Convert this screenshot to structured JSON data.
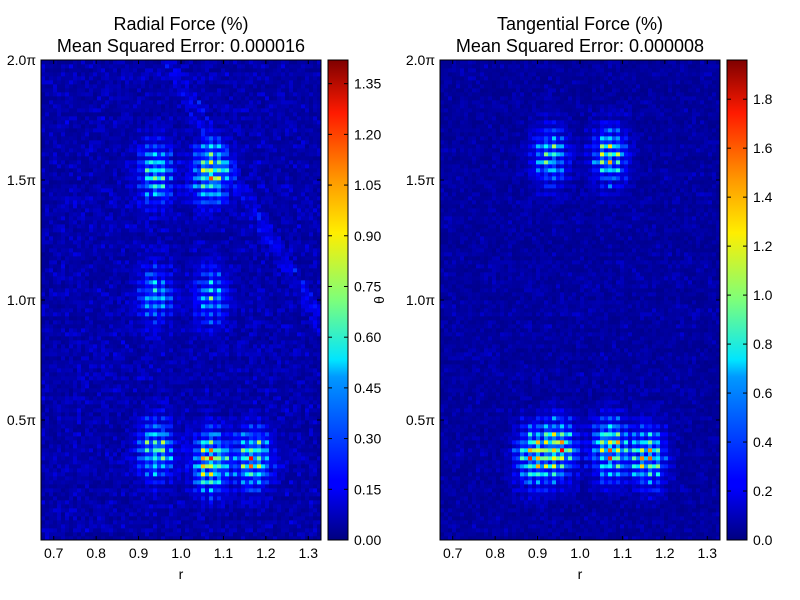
{
  "chart_data": [
    {
      "type": "heatmap",
      "title": "Radial Force (%)",
      "subtitle": "Mean Squared Error: 0.000016",
      "xlabel": "r",
      "ylabel": "θ",
      "xlim": [
        0.67,
        1.33
      ],
      "x_ticks": [
        0.7,
        0.8,
        0.9,
        1.0,
        1.1,
        1.2,
        1.3
      ],
      "x_tick_labels": [
        "0.7",
        "0.8",
        "0.9",
        "1.0",
        "1.1",
        "1.2",
        "1.3"
      ],
      "ylim_pi": [
        0.0,
        2.0
      ],
      "y_ticks_pi": [
        0.5,
        1.0,
        1.5,
        2.0
      ],
      "y_tick_labels": [
        "0.5π",
        "1.0π",
        "1.5π",
        "2.0π"
      ],
      "colormap": "jet",
      "colorbar": {
        "min": 0.0,
        "max": 1.42,
        "ticks": [
          0.0,
          0.15,
          0.3,
          0.45,
          0.6,
          0.75,
          0.9,
          1.05,
          1.2,
          1.35
        ],
        "tick_labels": [
          "0.00",
          "0.15",
          "0.30",
          "0.45",
          "0.60",
          "0.75",
          "0.90",
          "1.05",
          "1.20",
          "1.35"
        ]
      },
      "hotspots": [
        {
          "r": 0.94,
          "theta_pi": 1.53,
          "value": 0.85
        },
        {
          "r": 1.07,
          "theta_pi": 1.53,
          "value": 1.15
        },
        {
          "r": 0.94,
          "theta_pi": 0.38,
          "value": 0.95
        },
        {
          "r": 1.07,
          "theta_pi": 0.33,
          "value": 1.25
        },
        {
          "r": 1.17,
          "theta_pi": 0.34,
          "value": 1.1
        },
        {
          "r": 0.94,
          "theta_pi": 1.02,
          "value": 0.6
        },
        {
          "r": 1.07,
          "theta_pi": 1.02,
          "value": 0.6
        }
      ]
    },
    {
      "type": "heatmap",
      "title": "Tangential Force (%)",
      "subtitle": "Mean Squared Error: 0.000008",
      "xlabel": "r",
      "ylabel": "",
      "xlim": [
        0.67,
        1.33
      ],
      "x_ticks": [
        0.7,
        0.8,
        0.9,
        1.0,
        1.1,
        1.2,
        1.3
      ],
      "x_tick_labels": [
        "0.7",
        "0.8",
        "0.9",
        "1.0",
        "1.1",
        "1.2",
        "1.3"
      ],
      "ylim_pi": [
        0.0,
        2.0
      ],
      "y_ticks_pi": [
        0.5,
        1.0,
        1.5,
        2.0
      ],
      "y_tick_labels": [
        "0.5π",
        "1.0π",
        "1.5π",
        "2.0π"
      ],
      "colormap": "jet",
      "colorbar": {
        "min": 0.0,
        "max": 1.96,
        "ticks": [
          0.0,
          0.2,
          0.4,
          0.6,
          0.8,
          1.0,
          1.2,
          1.4,
          1.6,
          1.8
        ],
        "tick_labels": [
          "0.0",
          "0.2",
          "0.4",
          "0.6",
          "0.8",
          "1.0",
          "1.2",
          "1.4",
          "1.6",
          "1.8"
        ]
      },
      "hotspots": [
        {
          "r": 0.93,
          "theta_pi": 1.6,
          "value": 1.1
        },
        {
          "r": 1.07,
          "theta_pi": 1.6,
          "value": 1.3
        },
        {
          "r": 0.89,
          "theta_pi": 0.35,
          "value": 1.5
        },
        {
          "r": 0.95,
          "theta_pi": 0.38,
          "value": 1.6
        },
        {
          "r": 1.07,
          "theta_pi": 0.38,
          "value": 1.7
        },
        {
          "r": 1.16,
          "theta_pi": 0.35,
          "value": 1.5
        }
      ]
    }
  ]
}
